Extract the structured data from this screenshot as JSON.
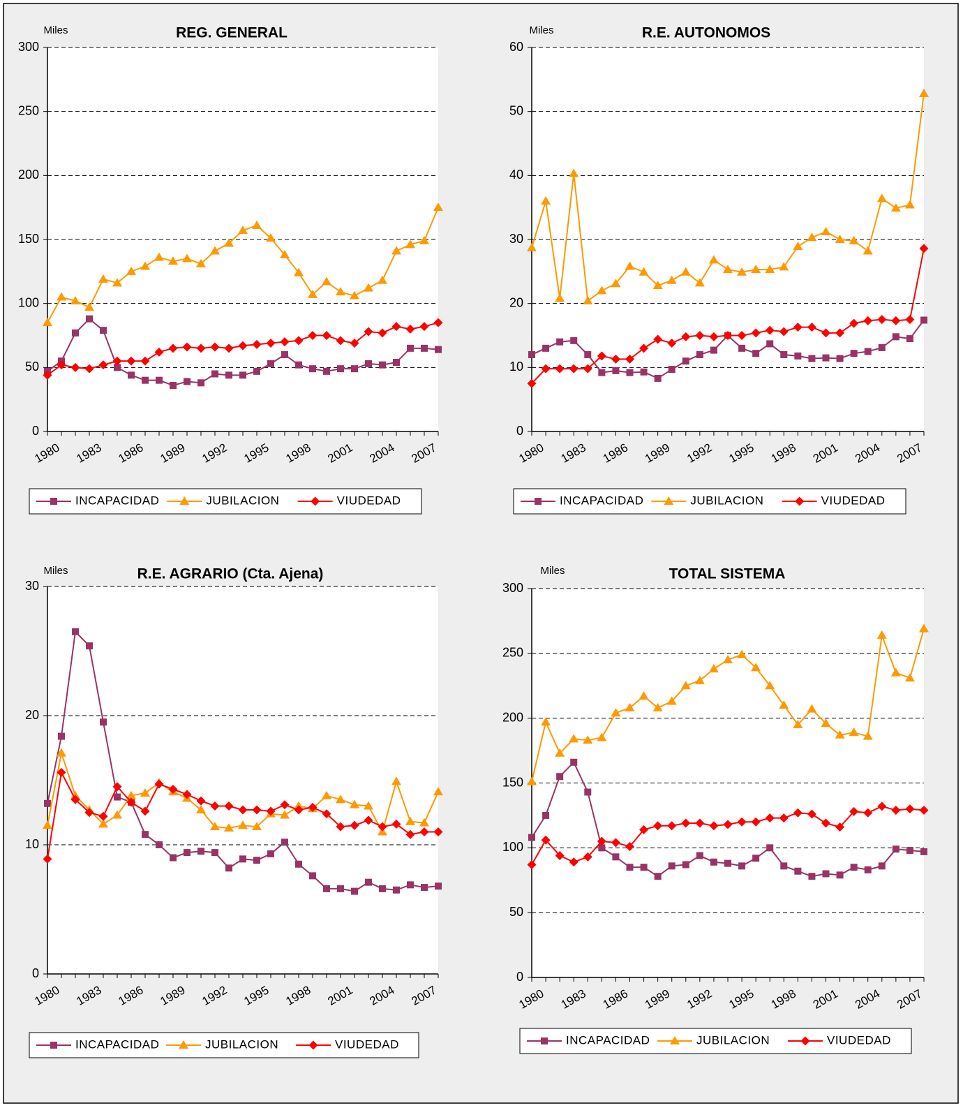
{
  "chart_data": [
    {
      "type": "line",
      "title": "REG. GENERAL",
      "unit_label": "Miles",
      "categories": [
        "1980",
        null,
        null,
        "1983",
        null,
        null,
        "1986",
        null,
        null,
        "1989",
        null,
        null,
        "1992",
        null,
        null,
        "1995",
        null,
        null,
        "1998",
        null,
        null,
        "2001",
        null,
        null,
        "2004",
        null,
        null,
        "2007",
        null
      ],
      "series": [
        {
          "name": "INCAPACIDAD",
          "color": "#993366",
          "marker": "square",
          "values": [
            47,
            55,
            77,
            88,
            79,
            50,
            44,
            40,
            40,
            36,
            39,
            38,
            45,
            44,
            44,
            47,
            53,
            60,
            52,
            49,
            47,
            49,
            49,
            53,
            52,
            54,
            65,
            65,
            64
          ]
        },
        {
          "name": "JUBILACION",
          "color": "#ff9900",
          "marker": "triangle",
          "values": [
            85,
            105,
            102,
            97,
            119,
            116,
            125,
            129,
            136,
            133,
            135,
            131,
            141,
            147,
            157,
            161,
            151,
            138,
            124,
            107,
            117,
            109,
            106,
            112,
            118,
            141,
            146,
            149,
            175
          ]
        },
        {
          "name": "VIUDEDAD",
          "color": "#ff0000",
          "marker": "diamond",
          "values": [
            44,
            52,
            50,
            49,
            52,
            55,
            55,
            55,
            62,
            65,
            66,
            65,
            66,
            65,
            67,
            68,
            69,
            70,
            71,
            75,
            75,
            71,
            69,
            78,
            77,
            82,
            80,
            82,
            85
          ]
        }
      ],
      "ylim": [
        0,
        300
      ],
      "yticks": [
        0,
        50,
        100,
        150,
        200,
        250,
        300
      ],
      "grid": true
    },
    {
      "type": "line",
      "title": "R.E. AUTONOMOS",
      "unit_label": "Miles",
      "categories": [
        "1980",
        null,
        null,
        "1983",
        null,
        null,
        "1986",
        null,
        null,
        "1989",
        null,
        null,
        "1992",
        null,
        null,
        "1995",
        null,
        null,
        "1998",
        null,
        null,
        "2001",
        null,
        null,
        "2004",
        null,
        null,
        "2007",
        null
      ],
      "series": [
        {
          "name": "INCAPACIDAD",
          "color": "#993366",
          "marker": "square",
          "values": [
            12,
            13,
            14,
            14.2,
            12,
            9.2,
            9.5,
            9.2,
            9.3,
            8.3,
            9.7,
            11,
            12,
            12.7,
            15,
            13,
            12.2,
            13.7,
            12,
            11.8,
            11.4,
            11.5,
            11.4,
            12.2,
            12.5,
            13.1,
            14.8,
            14.5,
            17.4
          ]
        },
        {
          "name": "JUBILACION",
          "color": "#ff9900",
          "marker": "triangle",
          "values": [
            28.7,
            36,
            20.8,
            40.3,
            20.4,
            22,
            23.1,
            25.8,
            24.9,
            22.8,
            23.6,
            24.9,
            23.2,
            26.8,
            25.3,
            24.9,
            25.3,
            25.3,
            25.7,
            28.9,
            30.3,
            31.2,
            30,
            29.8,
            28.2,
            36.4,
            34.9,
            35.4,
            52.8
          ]
        },
        {
          "name": "VIUDEDAD",
          "color": "#ff0000",
          "marker": "diamond",
          "values": [
            7.5,
            9.8,
            9.8,
            9.8,
            9.8,
            11.8,
            11.3,
            11.3,
            13,
            14.4,
            13.8,
            14.8,
            15,
            14.8,
            15,
            15,
            15.4,
            15.8,
            15.6,
            16.3,
            16.3,
            15.4,
            15.4,
            16.9,
            17.3,
            17.5,
            17.3,
            17.5,
            28.6
          ]
        }
      ],
      "ylim": [
        0,
        60
      ],
      "yticks": [
        0,
        10,
        20,
        30,
        40,
        50,
        60
      ],
      "grid": true
    },
    {
      "type": "line",
      "title": "R.E. AGRARIO (Cta. Ajena)",
      "unit_label": "Miles",
      "categories": [
        "1980",
        null,
        null,
        "1983",
        null,
        null,
        "1986",
        null,
        null,
        "1989",
        null,
        null,
        "1992",
        null,
        null,
        "1995",
        null,
        null,
        "1998",
        null,
        null,
        "2001",
        null,
        null,
        "2004",
        null,
        null,
        "2007",
        null
      ],
      "series": [
        {
          "name": "INCAPACIDAD",
          "color": "#993366",
          "marker": "square",
          "values": [
            13.2,
            18.4,
            26.5,
            25.4,
            19.5,
            13.7,
            13.3,
            10.8,
            10,
            9,
            9.4,
            9.5,
            9.4,
            8.2,
            8.9,
            8.8,
            9.3,
            10.2,
            8.5,
            7.6,
            6.6,
            6.6,
            6.4,
            7.1,
            6.6,
            6.5,
            6.9,
            6.7,
            6.8
          ]
        },
        {
          "name": "JUBILACION",
          "color": "#ff9900",
          "marker": "triangle",
          "values": [
            11.5,
            17.1,
            13.8,
            12.7,
            11.6,
            12.3,
            13.8,
            14,
            14.8,
            14.1,
            13.6,
            12.7,
            11.4,
            11.3,
            11.5,
            11.4,
            12.4,
            12.3,
            13,
            12.8,
            13.8,
            13.5,
            13.1,
            13,
            11,
            14.9,
            11.8,
            11.7,
            14.1
          ]
        },
        {
          "name": "VIUDEDAD",
          "color": "#ff0000",
          "marker": "diamond",
          "values": [
            8.9,
            15.6,
            13.5,
            12.5,
            12.2,
            14.5,
            13.3,
            12.6,
            14.7,
            14.3,
            13.9,
            13.4,
            13,
            13,
            12.7,
            12.7,
            12.6,
            13.1,
            12.7,
            12.9,
            12.4,
            11.4,
            11.5,
            11.9,
            11.4,
            11.6,
            10.8,
            11,
            11
          ]
        }
      ],
      "ylim": [
        0,
        30
      ],
      "yticks": [
        0,
        10,
        20,
        30
      ],
      "grid": true
    },
    {
      "type": "line",
      "title": "TOTAL SISTEMA",
      "unit_label": "Miles",
      "categories": [
        "1980",
        null,
        null,
        "1983",
        null,
        null,
        "1986",
        null,
        null,
        "1989",
        null,
        null,
        "1992",
        null,
        null,
        "1995",
        null,
        null,
        "1998",
        null,
        null,
        "2001",
        null,
        null,
        "2004",
        null,
        null,
        "2007",
        null
      ],
      "series": [
        {
          "name": "INCAPACIDAD",
          "color": "#993366",
          "marker": "square",
          "values": [
            108,
            125,
            155,
            166,
            143,
            100,
            93,
            85,
            85,
            78,
            86,
            87,
            94,
            89,
            88,
            86,
            92,
            100,
            86,
            82,
            78,
            80,
            79,
            85,
            83,
            86,
            99,
            98,
            97
          ]
        },
        {
          "name": "JUBILACION",
          "color": "#ff9900",
          "marker": "triangle",
          "values": [
            151,
            197,
            173,
            184,
            183,
            185,
            204,
            208,
            217,
            208,
            213,
            225,
            229,
            238,
            245,
            249,
            239,
            225,
            210,
            195,
            207,
            196,
            187,
            189,
            186,
            264,
            235,
            231,
            269
          ]
        },
        {
          "name": "VIUDEDAD",
          "color": "#ff0000",
          "marker": "diamond",
          "values": [
            87,
            106,
            94,
            89,
            93,
            105,
            104,
            101,
            114,
            117,
            117,
            119,
            119,
            117,
            118,
            120,
            120,
            123,
            123,
            127,
            126,
            119,
            116,
            128,
            127,
            132,
            129,
            130,
            129
          ]
        }
      ],
      "ylim": [
        0,
        300
      ],
      "yticks": [
        0,
        50,
        100,
        150,
        200,
        250,
        300
      ],
      "grid": true
    }
  ]
}
